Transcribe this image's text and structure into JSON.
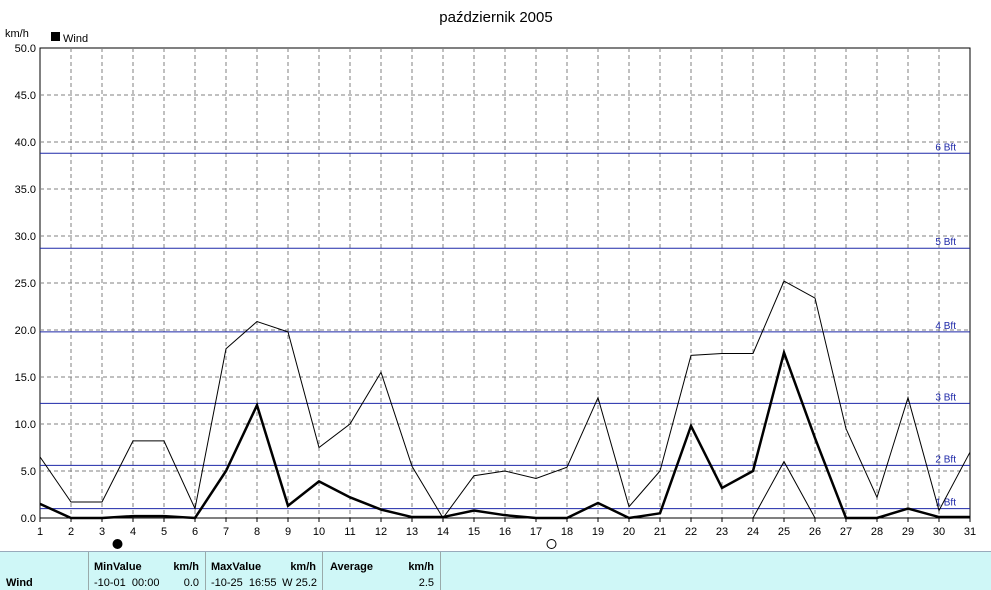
{
  "chart_data": {
    "type": "line",
    "title": "październik 2005",
    "ylabel": "km/h",
    "legend": {
      "label": "Wind",
      "placement": "top-left"
    },
    "x": [
      1,
      2,
      3,
      4,
      5,
      6,
      7,
      8,
      9,
      10,
      11,
      12,
      13,
      14,
      15,
      16,
      17,
      18,
      19,
      20,
      21,
      22,
      23,
      24,
      25,
      26,
      27,
      28,
      29,
      30,
      31
    ],
    "xlim": [
      1,
      31
    ],
    "ylim": [
      0,
      50
    ],
    "y_ticks": [
      "0.0",
      "5.0",
      "10.0",
      "15.0",
      "20.0",
      "25.0",
      "30.0",
      "35.0",
      "40.0",
      "45.0",
      "50.0"
    ],
    "grid": true,
    "beaufort": [
      {
        "label": "1 Bft",
        "value": 1.0
      },
      {
        "label": "2 Bft",
        "value": 5.6
      },
      {
        "label": "3 Bft",
        "value": 12.2
      },
      {
        "label": "4 Bft",
        "value": 19.8
      },
      {
        "label": "5 Bft",
        "value": 28.7
      },
      {
        "label": "6 Bft",
        "value": 38.8
      }
    ],
    "series": [
      {
        "role": "max",
        "values": [
          6.5,
          1.7,
          1.7,
          8.2,
          8.2,
          1.0,
          18.0,
          20.9,
          19.8,
          7.5,
          10.0,
          15.5,
          5.5,
          0.0,
          4.5,
          5.0,
          4.2,
          5.4,
          12.8,
          1.2,
          5.0,
          17.3,
          17.5,
          17.5,
          25.2,
          23.4,
          9.5,
          2.2,
          12.8,
          0.8,
          7.0
        ]
      },
      {
        "role": "mean",
        "values": [
          1.5,
          0.0,
          0.0,
          0.2,
          0.2,
          0.0,
          5.0,
          12.0,
          1.3,
          3.9,
          2.2,
          0.9,
          0.1,
          0.1,
          0.8,
          0.3,
          0.0,
          0.0,
          1.6,
          0.0,
          0.5,
          9.8,
          3.2,
          5.0,
          17.6,
          8.5,
          0.0,
          0.0,
          1.0,
          0.1,
          0.1
        ]
      },
      {
        "role": "min",
        "values": [
          0.0,
          0.0,
          0.0,
          0.0,
          0.0,
          0.0,
          0.0,
          0.0,
          0.0,
          0.0,
          0.0,
          0.0,
          0.0,
          0.0,
          0.0,
          0.0,
          0.0,
          0.0,
          0.0,
          0.0,
          0.0,
          0.0,
          0.0,
          0.0,
          6.0,
          0.0,
          0.0,
          0.0,
          0.0,
          0.0,
          0.0
        ]
      }
    ],
    "moon_phases": [
      {
        "x": 3.5,
        "phase": "new"
      },
      {
        "x": 17.5,
        "phase": "full"
      }
    ]
  },
  "colors": {
    "bft_line": "#1e28a8",
    "bft_text": "#1e28a8",
    "grid": "#808080",
    "series": "#000000",
    "panel_bg": "#cff7f7"
  },
  "summary": {
    "row_label": "Wind",
    "min_header": "MinValue",
    "min_unit": "km/h",
    "min_time": "-10-01  00:00",
    "min_value": "0.0",
    "max_header": "MaxValue",
    "max_unit": "km/h",
    "max_time": "-10-25  16:55",
    "max_value": "W 25.2",
    "avg_header": "Average",
    "avg_unit": "km/h",
    "avg_value": "2.5"
  }
}
